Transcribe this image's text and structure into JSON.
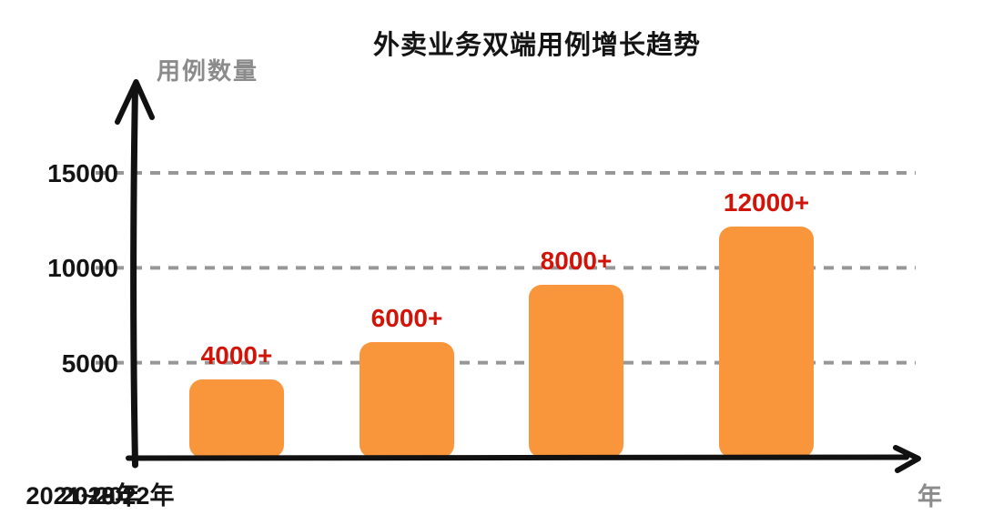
{
  "title": "外卖业务双端用例增长趋势",
  "y_axis_label": "用例数量",
  "x_axis_label": "年",
  "colors": {
    "bar": "#F9963B",
    "value_label": "#D21408",
    "axis": "#111111",
    "gridline": "#979797",
    "muted_text": "#8b8b8b",
    "text": "#141414"
  },
  "chart_data": {
    "type": "bar",
    "title": "外卖业务双端用例增长趋势",
    "xlabel": "年",
    "ylabel": "用例数量",
    "categories": [
      "2018年",
      "2019年",
      "2020年",
      "2021~2022年"
    ],
    "values": [
      4000,
      6000,
      8000,
      12000
    ],
    "value_labels": [
      "4000+",
      "6000+",
      "8000+",
      "12000+"
    ],
    "drawn_values": [
      4100,
      6100,
      9100,
      12150
    ],
    "yticks": [
      5000,
      10000,
      15000
    ],
    "ylim": [
      0,
      15000
    ],
    "grid": "horizontal dashed gray lines at yticks",
    "legend": "none",
    "bar_style": "orange rounded-corner bars, red bold value labels above bars, hand-drawn black arrow axes"
  }
}
